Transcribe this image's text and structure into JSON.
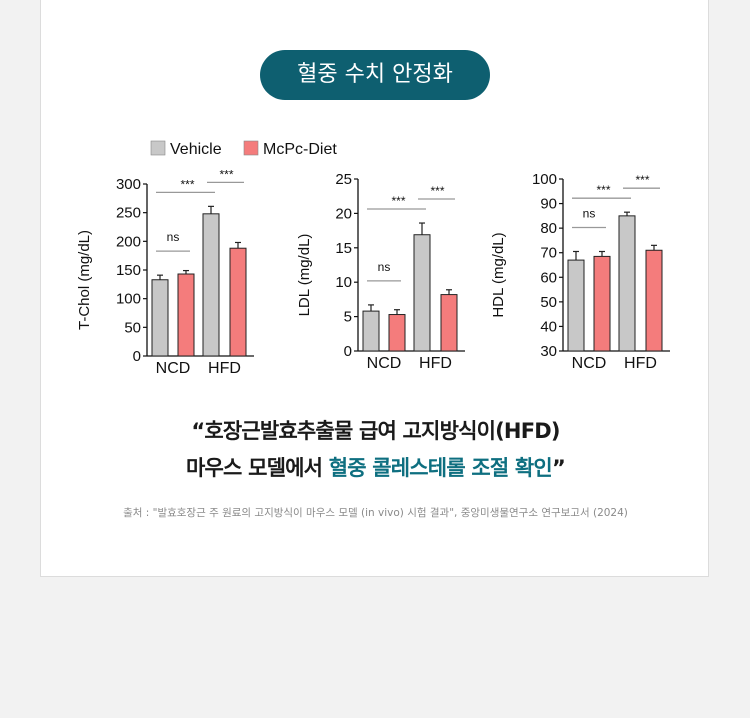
{
  "badge": "혈중 수치 안정화",
  "legend": [
    {
      "label": "Vehicle",
      "color": "#c8c8c8"
    },
    {
      "label": "McPc-Diet",
      "color": "#f47c7c"
    }
  ],
  "chart_data": [
    {
      "type": "bar",
      "ylabel": "T-Chol (mg/dL)",
      "categories": [
        "NCD",
        "HFD"
      ],
      "ylim": [
        0,
        300
      ],
      "yticks": [
        0,
        50,
        100,
        150,
        200,
        250,
        300
      ],
      "series": [
        {
          "name": "Vehicle",
          "values": [
            133,
            248
          ],
          "errors": [
            8,
            13
          ]
        },
        {
          "name": "McPc-Diet",
          "values": [
            143,
            188
          ],
          "errors": [
            6,
            10
          ]
        }
      ],
      "annotations": [
        {
          "text": "ns",
          "compare": "NCD Vehicle vs NCD McPc-Diet"
        },
        {
          "text": "***",
          "compare": "NCD Vehicle vs HFD Vehicle"
        },
        {
          "text": "***",
          "compare": "HFD Vehicle vs HFD McPc-Diet"
        }
      ]
    },
    {
      "type": "bar",
      "ylabel": "LDL (mg/dL)",
      "categories": [
        "NCD",
        "HFD"
      ],
      "ylim": [
        0,
        25
      ],
      "yticks": [
        0,
        5,
        10,
        15,
        20,
        25
      ],
      "series": [
        {
          "name": "Vehicle",
          "values": [
            5.8,
            16.9
          ],
          "errors": [
            0.9,
            1.7
          ]
        },
        {
          "name": "McPc-Diet",
          "values": [
            5.3,
            8.2
          ],
          "errors": [
            0.7,
            0.7
          ]
        }
      ],
      "annotations": [
        {
          "text": "ns",
          "compare": "NCD Vehicle vs NCD McPc-Diet"
        },
        {
          "text": "***",
          "compare": "NCD Vehicle vs HFD Vehicle"
        },
        {
          "text": "***",
          "compare": "HFD Vehicle vs HFD McPc-Diet"
        }
      ]
    },
    {
      "type": "bar",
      "ylabel": "HDL (mg/dL)",
      "categories": [
        "NCD",
        "HFD"
      ],
      "ylim": [
        30,
        100
      ],
      "yticks": [
        30,
        40,
        50,
        60,
        70,
        80,
        90,
        100
      ],
      "series": [
        {
          "name": "Vehicle",
          "values": [
            67,
            85
          ],
          "errors": [
            3.5,
            1.5
          ]
        },
        {
          "name": "McPc-Diet",
          "values": [
            68.5,
            71
          ],
          "errors": [
            2,
            2
          ]
        }
      ],
      "annotations": [
        {
          "text": "ns",
          "compare": "NCD Vehicle vs NCD McPc-Diet"
        },
        {
          "text": "***",
          "compare": "NCD Vehicle vs HFD Vehicle"
        },
        {
          "text": "***",
          "compare": "HFD Vehicle vs HFD McPc-Diet"
        }
      ]
    }
  ],
  "quote": {
    "line1": "“호장근발효추출물 급여 고지방식이(HFD)",
    "line2_plain": "마우스 모델에서 ",
    "line2_accent": "혈중 콜레스테롤 조절 확인",
    "line2_close": "”"
  },
  "source": "출처 : \"발효호장근 주 원료의 고지방식이 마우스 모델 (in vivo) 시험 결과\", 중앙미생물연구소 연구보고서 (2024)"
}
